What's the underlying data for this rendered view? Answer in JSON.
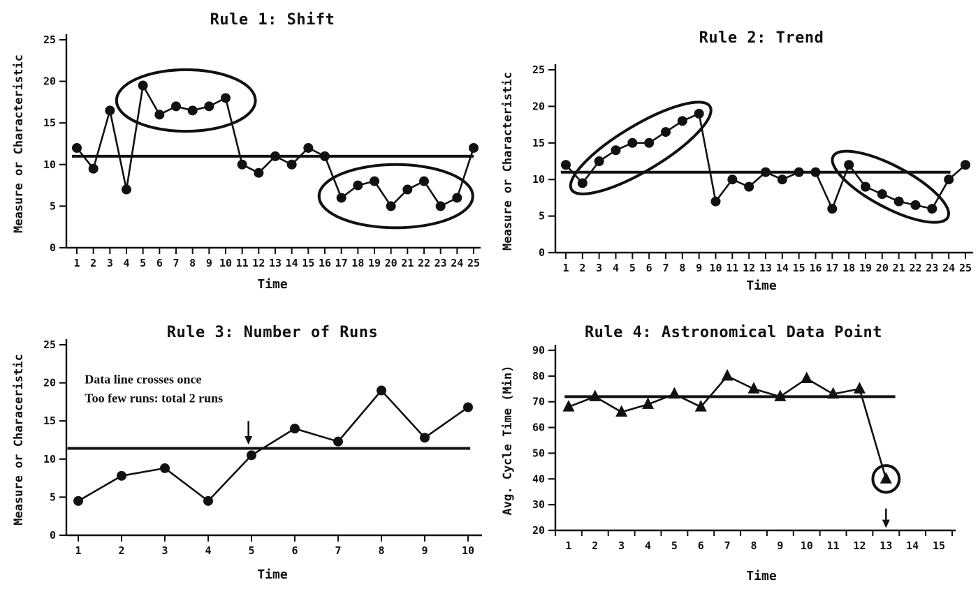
{
  "page": {
    "background": "#ffffff",
    "ink": "#111111"
  },
  "chart_data": [
    {
      "id": "rule1-shift",
      "type": "line",
      "title": "Rule 1: Shift",
      "xlabel": "Time",
      "ylabel": "Measure or Characteristic",
      "marker": "circle",
      "grid": false,
      "legend": "none",
      "ylim": [
        0,
        25
      ],
      "yticks": [
        0,
        5,
        10,
        15,
        20,
        25
      ],
      "xticks": [
        1,
        2,
        3,
        4,
        5,
        6,
        7,
        8,
        9,
        10,
        11,
        12,
        13,
        14,
        15,
        16,
        17,
        18,
        19,
        20,
        21,
        22,
        23,
        24,
        25
      ],
      "x": [
        1,
        2,
        3,
        4,
        5,
        6,
        7,
        8,
        9,
        10,
        11,
        12,
        13,
        14,
        15,
        16,
        17,
        18,
        19,
        20,
        21,
        22,
        23,
        24,
        25
      ],
      "values": [
        12,
        9.5,
        16.5,
        7,
        19.5,
        16,
        17,
        16.5,
        17,
        18,
        10,
        9,
        11,
        10,
        12,
        11,
        6,
        7.5,
        8,
        5,
        7,
        8,
        5,
        6,
        12
      ],
      "center_line": 11,
      "center_line_span": [
        0.7,
        25
      ],
      "ellipses": [
        {
          "cx": 7.6,
          "cy": 17.7,
          "rx": 4.2,
          "ry": 3.7,
          "angle": 0
        },
        {
          "cx": 20.3,
          "cy": 6.2,
          "rx": 4.65,
          "ry": 3.8,
          "angle": 0
        }
      ],
      "arrows": [],
      "notes": []
    },
    {
      "id": "rule2-trend",
      "type": "line",
      "title": "Rule 2: Trend",
      "xlabel": "Time",
      "ylabel": "Measure or Characteristic",
      "marker": "circle",
      "grid": false,
      "legend": "none",
      "ylim": [
        0,
        25
      ],
      "yticks": [
        0,
        5,
        10,
        15,
        20,
        25
      ],
      "xticks": [
        1,
        2,
        3,
        4,
        5,
        6,
        7,
        8,
        9,
        10,
        11,
        12,
        13,
        14,
        15,
        16,
        17,
        18,
        19,
        20,
        21,
        22,
        23,
        24,
        25
      ],
      "x": [
        1,
        2,
        3,
        4,
        5,
        6,
        7,
        8,
        9,
        10,
        11,
        12,
        13,
        14,
        15,
        16,
        17,
        18,
        19,
        20,
        21,
        22,
        23,
        24,
        25
      ],
      "values": [
        12,
        9.5,
        12.5,
        14,
        15,
        15,
        16.5,
        18,
        19,
        7,
        10,
        9,
        11,
        10,
        11,
        11,
        6,
        12,
        9,
        8,
        7,
        6.5,
        6,
        10,
        12
      ],
      "center_line": 11,
      "center_line_span": [
        0.7,
        24.1
      ],
      "ellipses": [
        {
          "cx": 5.5,
          "cy": 14.3,
          "rx": 4.85,
          "ry": 3.1,
          "angle": -31
        },
        {
          "cx": 20.5,
          "cy": 9.0,
          "rx": 3.9,
          "ry": 2.85,
          "angle": 28
        }
      ],
      "arrows": [],
      "notes": []
    },
    {
      "id": "rule3-number-of-runs",
      "type": "line",
      "title": "Rule 3: Number of Runs",
      "xlabel": "Time",
      "ylabel": "Measure or Characeristic",
      "marker": "circle",
      "grid": false,
      "legend": "none",
      "ylim": [
        0,
        25
      ],
      "yticks": [
        0,
        5,
        10,
        15,
        20,
        25
      ],
      "xticks": [
        1,
        2,
        3,
        4,
        5,
        6,
        7,
        8,
        9,
        10
      ],
      "x": [
        1,
        2,
        3,
        4,
        5,
        6,
        7,
        8,
        9,
        10
      ],
      "values": [
        4.5,
        7.8,
        8.8,
        4.5,
        10.5,
        14,
        12.3,
        19,
        12.8,
        16.8
      ],
      "center_line": 11.4,
      "center_line_span": [
        0.75,
        10.05
      ],
      "ellipses": [],
      "arrows": [
        {
          "x": 4.93,
          "from": 15.0,
          "to": 11.9
        }
      ],
      "notes": [
        {
          "x": 1.15,
          "y": 19.9,
          "line_gap": 27,
          "lines": [
            "Data line crosses once",
            "Too few runs: total 2 runs"
          ]
        }
      ]
    },
    {
      "id": "rule4-astronomical-data-point",
      "type": "line",
      "title": "Rule 4: Astronomical Data Point",
      "xlabel": "Time",
      "ylabel": "Avg. Cycle Time (Min)",
      "marker": "triangle",
      "grid": false,
      "legend": "none",
      "ylim": [
        20,
        90
      ],
      "yticks": [
        20,
        30,
        40,
        50,
        60,
        70,
        80,
        90
      ],
      "xticks": [
        1,
        2,
        3,
        4,
        5,
        6,
        7,
        8,
        9,
        10,
        11,
        12,
        13,
        14,
        15
      ],
      "x": [
        1,
        2,
        3,
        4,
        5,
        6,
        7,
        8,
        9,
        10,
        11,
        12,
        13
      ],
      "values": [
        68,
        72,
        66,
        69,
        73,
        68,
        80,
        75,
        72,
        79,
        73,
        75,
        40
      ],
      "center_line": 72,
      "center_line_span": [
        0.85,
        13.35
      ],
      "ellipses": [
        {
          "cx": 13,
          "cy": 40,
          "rx": 0.5,
          "ry": 5.2,
          "angle": 0
        }
      ],
      "arrows": [
        {
          "x": 13,
          "from": 28.5,
          "to": 20.9
        }
      ],
      "notes": []
    }
  ]
}
